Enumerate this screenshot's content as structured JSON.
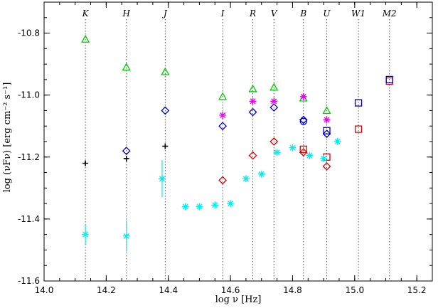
{
  "chart_data": {
    "type": "scatter",
    "xlabel": "log ν [Hz]",
    "ylabel": "log (νFν) [erg cm⁻² s⁻¹]",
    "xlim": [
      14.0,
      15.25
    ],
    "ylim": [
      -11.6,
      -10.7
    ],
    "xticks": [
      14.0,
      14.2,
      14.4,
      14.6,
      14.8,
      15.0,
      15.2
    ],
    "xtick_labels": [
      "14.0",
      "14.2",
      "14.4",
      "14.6",
      "14.8",
      "15.0",
      "15.2"
    ],
    "yticks": [
      -11.6,
      -11.4,
      -11.2,
      -11.0,
      -10.8
    ],
    "ytick_labels": [
      "-11.6",
      "-11.4",
      "-11.2",
      "-11.0",
      "-10.8"
    ],
    "grid": false,
    "bands": [
      {
        "label": "K",
        "x": 14.133
      },
      {
        "label": "H",
        "x": 14.265
      },
      {
        "label": "J",
        "x": 14.39
      },
      {
        "label": "I",
        "x": 14.575
      },
      {
        "label": "R",
        "x": 14.672
      },
      {
        "label": "V",
        "x": 14.74
      },
      {
        "label": "B",
        "x": 14.835
      },
      {
        "label": "U",
        "x": 14.91
      },
      {
        "label": "W1",
        "x": 15.012
      },
      {
        "label": "M2",
        "x": 15.112
      }
    ],
    "series": [
      {
        "marker": "triangle",
        "color": "#00cc00",
        "points": [
          [
            14.133,
            -10.82
          ],
          [
            14.265,
            -10.91
          ],
          [
            14.39,
            -10.925
          ],
          [
            14.575,
            -11.005
          ],
          [
            14.672,
            -10.98
          ],
          [
            14.74,
            -10.975
          ],
          [
            14.835,
            -11.01
          ],
          [
            14.91,
            -11.05
          ]
        ]
      },
      {
        "marker": "diamond",
        "color": "#0000cc",
        "points": [
          [
            14.265,
            -11.18
          ],
          [
            14.39,
            -11.05
          ],
          [
            14.575,
            -11.1
          ],
          [
            14.672,
            -11.055
          ],
          [
            14.74,
            -11.04
          ],
          [
            14.835,
            -11.08
          ],
          [
            14.91,
            -11.125
          ]
        ]
      },
      {
        "marker": "asterisk",
        "color": "#ee00ee",
        "points": [
          [
            14.575,
            -11.065
          ],
          [
            14.672,
            -11.02
          ],
          [
            14.74,
            -11.02
          ],
          [
            14.835,
            -11.005
          ],
          [
            14.91,
            -11.08
          ]
        ]
      },
      {
        "marker": "diamond",
        "color": "#dd0000",
        "points": [
          [
            14.575,
            -11.275
          ],
          [
            14.672,
            -11.195
          ],
          [
            14.74,
            -11.15
          ],
          [
            14.835,
            -11.185
          ],
          [
            14.91,
            -11.23
          ]
        ]
      },
      {
        "marker": "circle",
        "color": "#0000cc",
        "points": [
          [
            14.835,
            -11.085
          ]
        ]
      },
      {
        "marker": "square",
        "color": "#dd0000",
        "points": [
          [
            14.835,
            -11.175
          ],
          [
            14.91,
            -11.2
          ],
          [
            15.012,
            -11.11
          ],
          [
            15.112,
            -10.955
          ]
        ]
      },
      {
        "marker": "square",
        "color": "#0000cc",
        "points": [
          [
            14.91,
            -11.115
          ],
          [
            15.012,
            -11.025
          ],
          [
            15.112,
            -10.95
          ]
        ]
      },
      {
        "marker": "plus",
        "color": "#000000",
        "points": [
          [
            14.133,
            -11.22
          ],
          [
            14.265,
            -11.205
          ],
          [
            14.39,
            -11.165
          ]
        ]
      },
      {
        "marker": "asterisk",
        "color": "#00eeee",
        "points": [
          [
            14.133,
            -11.45,
            0.03
          ],
          [
            14.265,
            -11.455,
            0.05
          ],
          [
            14.38,
            -11.27,
            0.06
          ],
          [
            14.455,
            -11.36,
            0
          ],
          [
            14.5,
            -11.36,
            0
          ],
          [
            14.55,
            -11.355,
            0
          ],
          [
            14.6,
            -11.35,
            0
          ],
          [
            14.65,
            -11.27,
            0
          ],
          [
            14.7,
            -11.255,
            0
          ],
          [
            14.75,
            -11.185,
            0
          ],
          [
            14.8,
            -11.17,
            0
          ],
          [
            14.855,
            -11.195,
            0
          ],
          [
            14.9,
            -11.205,
            0
          ],
          [
            14.945,
            -11.15,
            0
          ]
        ]
      }
    ]
  }
}
